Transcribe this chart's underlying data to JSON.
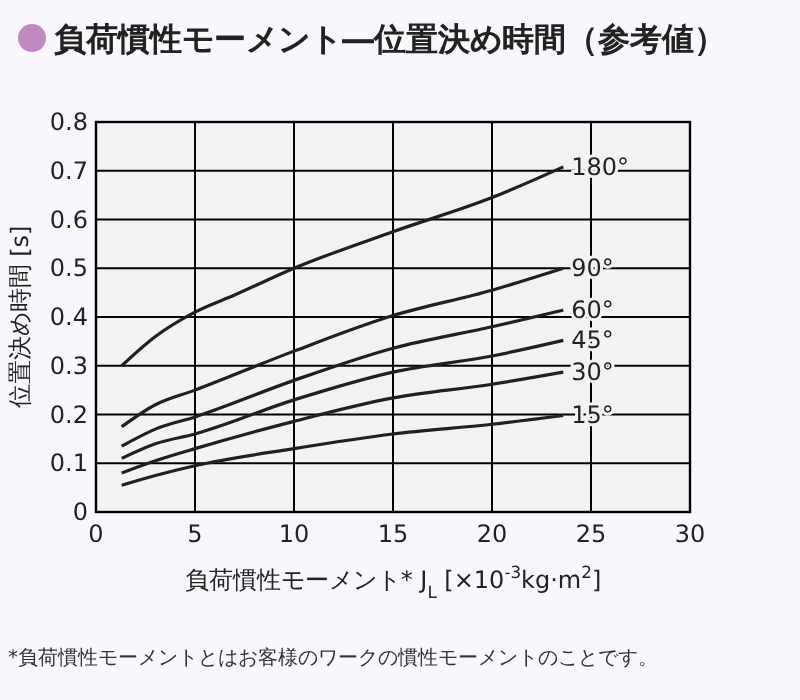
{
  "chart_data": {
    "type": "line",
    "title": "負荷慣性モーメント―位置決め時間（参考値）",
    "xlabel": "負荷慣性モーメント* J$_{L}$ [×10$^{-3}$kg·m$^{2}$]",
    "ylabel": "位置決め時間 [s]",
    "annotations": [
      "*負荷慣性モーメントとはお客様のワークの慣性モーメントのことです。"
    ],
    "xlim": [
      0,
      30
    ],
    "xticks": [
      0,
      5,
      10,
      15,
      20,
      25,
      30
    ],
    "ylim": [
      0,
      0.8
    ],
    "yticks": [
      0,
      0.1,
      0.2,
      0.3,
      0.4,
      0.5,
      0.6,
      0.7,
      0.8
    ],
    "grid": true,
    "legend": false,
    "marker": "none",
    "line_style": "solid",
    "series": [
      {
        "name": "180°",
        "color": "#231f20",
        "x": [
          1.3,
          3,
          5,
          7,
          10,
          15,
          20,
          23.6
        ],
        "values": [
          0.3,
          0.36,
          0.41,
          0.445,
          0.5,
          0.575,
          0.645,
          0.708
        ]
      },
      {
        "name": "90°",
        "color": "#231f20",
        "x": [
          1.3,
          3,
          5,
          10,
          15,
          20,
          23.6
        ],
        "values": [
          0.175,
          0.22,
          0.25,
          0.33,
          0.403,
          0.455,
          0.5
        ]
      },
      {
        "name": "60°",
        "color": "#231f20",
        "x": [
          1.3,
          3,
          5,
          10,
          15,
          20,
          23.6
        ],
        "values": [
          0.135,
          0.17,
          0.195,
          0.27,
          0.336,
          0.38,
          0.414
        ]
      },
      {
        "name": "45°",
        "color": "#231f20",
        "x": [
          1.3,
          3,
          5,
          10,
          15,
          20,
          23.6
        ],
        "values": [
          0.11,
          0.14,
          0.16,
          0.23,
          0.287,
          0.32,
          0.352
        ]
      },
      {
        "name": "30°",
        "color": "#231f20",
        "x": [
          1.3,
          3,
          5,
          10,
          15,
          20,
          23.6
        ],
        "values": [
          0.08,
          0.105,
          0.13,
          0.186,
          0.234,
          0.262,
          0.287
        ]
      },
      {
        "name": "15°",
        "color": "#231f20",
        "x": [
          1.3,
          3,
          5,
          10,
          15,
          20,
          23.6
        ],
        "values": [
          0.055,
          0.075,
          0.095,
          0.13,
          0.16,
          0.18,
          0.198
        ]
      }
    ]
  }
}
